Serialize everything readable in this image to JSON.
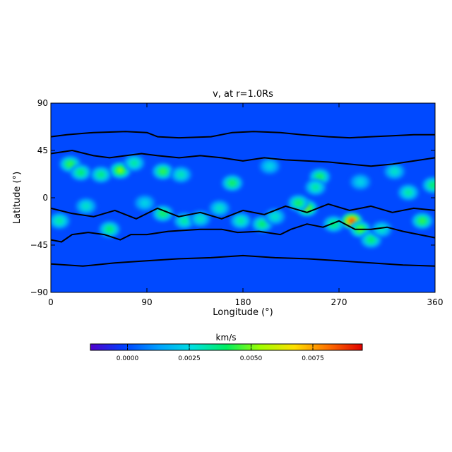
{
  "chart_data": {
    "type": "heatmap",
    "title": "v, at r=1.0Rs",
    "xlabel": "Longitude (°)",
    "ylabel": "Latitude (°)",
    "xlim": [
      0,
      360
    ],
    "ylim": [
      -90,
      90
    ],
    "xticks": [
      0,
      90,
      180,
      270,
      360
    ],
    "yticks": [
      90,
      45,
      0,
      -45,
      -90
    ],
    "xtick_labels": [
      "0",
      "90",
      "180",
      "270",
      "360"
    ],
    "ytick_labels": [
      "90",
      "45",
      "0",
      "−45",
      "−90"
    ],
    "grid": false,
    "colorbar": {
      "title": "km/s",
      "range": [
        -0.0015,
        0.0095
      ],
      "ticks": [
        0.0,
        0.0025,
        0.005,
        0.0075
      ],
      "tick_labels": [
        "0.0000",
        "0.0025",
        "0.0050",
        "0.0075"
      ],
      "colormap": [
        "#5000cc",
        "#0040ff",
        "#00a0ff",
        "#00e0e0",
        "#00ee60",
        "#a0ff00",
        "#ffe000",
        "#ff7000",
        "#e00000"
      ]
    },
    "background_value": 0.0,
    "hotspots": [
      {
        "lon": 18,
        "lat": 32,
        "v": 0.0045
      },
      {
        "lon": 28,
        "lat": 24,
        "v": 0.004
      },
      {
        "lon": 65,
        "lat": 26,
        "v": 0.0055
      },
      {
        "lon": 78,
        "lat": 33,
        "v": 0.0035
      },
      {
        "lon": 47,
        "lat": 22,
        "v": 0.0038
      },
      {
        "lon": 105,
        "lat": 25,
        "v": 0.0045
      },
      {
        "lon": 122,
        "lat": 22,
        "v": 0.0032
      },
      {
        "lon": 8,
        "lat": -22,
        "v": 0.0035
      },
      {
        "lon": 33,
        "lat": -8,
        "v": 0.003
      },
      {
        "lon": 55,
        "lat": -30,
        "v": 0.004
      },
      {
        "lon": 105,
        "lat": -15,
        "v": 0.0042
      },
      {
        "lon": 125,
        "lat": -22,
        "v": 0.0035
      },
      {
        "lon": 140,
        "lat": -20,
        "v": 0.003
      },
      {
        "lon": 170,
        "lat": 14,
        "v": 0.0042
      },
      {
        "lon": 158,
        "lat": -10,
        "v": 0.003
      },
      {
        "lon": 178,
        "lat": -22,
        "v": 0.0035
      },
      {
        "lon": 198,
        "lat": -25,
        "v": 0.004
      },
      {
        "lon": 210,
        "lat": -18,
        "v": 0.003
      },
      {
        "lon": 205,
        "lat": 30,
        "v": 0.0025
      },
      {
        "lon": 240,
        "lat": -10,
        "v": 0.0055
      },
      {
        "lon": 232,
        "lat": -5,
        "v": 0.0042
      },
      {
        "lon": 252,
        "lat": 20,
        "v": 0.0042
      },
      {
        "lon": 248,
        "lat": 10,
        "v": 0.0035
      },
      {
        "lon": 265,
        "lat": -25,
        "v": 0.004
      },
      {
        "lon": 282,
        "lat": -22,
        "v": 0.0088
      },
      {
        "lon": 290,
        "lat": -30,
        "v": 0.005
      },
      {
        "lon": 300,
        "lat": -40,
        "v": 0.004
      },
      {
        "lon": 310,
        "lat": -30,
        "v": 0.003
      },
      {
        "lon": 322,
        "lat": 25,
        "v": 0.003
      },
      {
        "lon": 335,
        "lat": 5,
        "v": 0.0035
      },
      {
        "lon": 348,
        "lat": -22,
        "v": 0.0045
      },
      {
        "lon": 358,
        "lat": 12,
        "v": 0.004
      },
      {
        "lon": 290,
        "lat": 15,
        "v": 0.0025
      },
      {
        "lon": 88,
        "lat": -5,
        "v": 0.0025
      }
    ],
    "contours": [
      [
        [
          0,
          58
        ],
        [
          15,
          60
        ],
        [
          40,
          62
        ],
        [
          70,
          63
        ],
        [
          90,
          62
        ],
        [
          100,
          58
        ],
        [
          120,
          57
        ],
        [
          150,
          58
        ],
        [
          170,
          62
        ],
        [
          190,
          63
        ],
        [
          215,
          62
        ],
        [
          235,
          60
        ],
        [
          260,
          58
        ],
        [
          280,
          57
        ],
        [
          300,
          58
        ],
        [
          320,
          59
        ],
        [
          340,
          60
        ],
        [
          360,
          60
        ]
      ],
      [
        [
          0,
          -40
        ],
        [
          10,
          -42
        ],
        [
          20,
          -35
        ],
        [
          35,
          -33
        ],
        [
          50,
          -35
        ],
        [
          65,
          -40
        ],
        [
          75,
          -35
        ],
        [
          90,
          -35
        ],
        [
          110,
          -32
        ],
        [
          140,
          -30
        ],
        [
          160,
          -30
        ],
        [
          175,
          -33
        ],
        [
          195,
          -32
        ],
        [
          215,
          -35
        ],
        [
          225,
          -30
        ],
        [
          240,
          -25
        ],
        [
          255,
          -28
        ],
        [
          270,
          -22
        ],
        [
          285,
          -30
        ],
        [
          300,
          -30
        ],
        [
          315,
          -28
        ],
        [
          330,
          -32
        ],
        [
          345,
          -35
        ],
        [
          360,
          -38
        ]
      ],
      [
        [
          0,
          -63
        ],
        [
          30,
          -65
        ],
        [
          60,
          -62
        ],
        [
          90,
          -60
        ],
        [
          120,
          -58
        ],
        [
          150,
          -57
        ],
        [
          180,
          -55
        ],
        [
          210,
          -57
        ],
        [
          240,
          -58
        ],
        [
          270,
          -60
        ],
        [
          300,
          -62
        ],
        [
          330,
          -64
        ],
        [
          360,
          -65
        ]
      ],
      [
        [
          0,
          42
        ],
        [
          20,
          45
        ],
        [
          40,
          40
        ],
        [
          55,
          38
        ],
        [
          70,
          40
        ],
        [
          85,
          42
        ],
        [
          100,
          40
        ],
        [
          120,
          38
        ],
        [
          140,
          40
        ],
        [
          160,
          38
        ],
        [
          180,
          35
        ],
        [
          200,
          38
        ],
        [
          220,
          36
        ],
        [
          240,
          35
        ],
        [
          260,
          34
        ],
        [
          280,
          32
        ],
        [
          300,
          30
        ],
        [
          320,
          32
        ],
        [
          340,
          35
        ],
        [
          360,
          38
        ]
      ],
      [
        [
          0,
          -10
        ],
        [
          20,
          -15
        ],
        [
          40,
          -18
        ],
        [
          60,
          -12
        ],
        [
          80,
          -20
        ],
        [
          100,
          -10
        ],
        [
          120,
          -18
        ],
        [
          140,
          -14
        ],
        [
          160,
          -20
        ],
        [
          180,
          -12
        ],
        [
          200,
          -16
        ],
        [
          220,
          -8
        ],
        [
          240,
          -14
        ],
        [
          260,
          -6
        ],
        [
          280,
          -12
        ],
        [
          300,
          -8
        ],
        [
          320,
          -14
        ],
        [
          340,
          -10
        ],
        [
          360,
          -12
        ]
      ]
    ]
  }
}
